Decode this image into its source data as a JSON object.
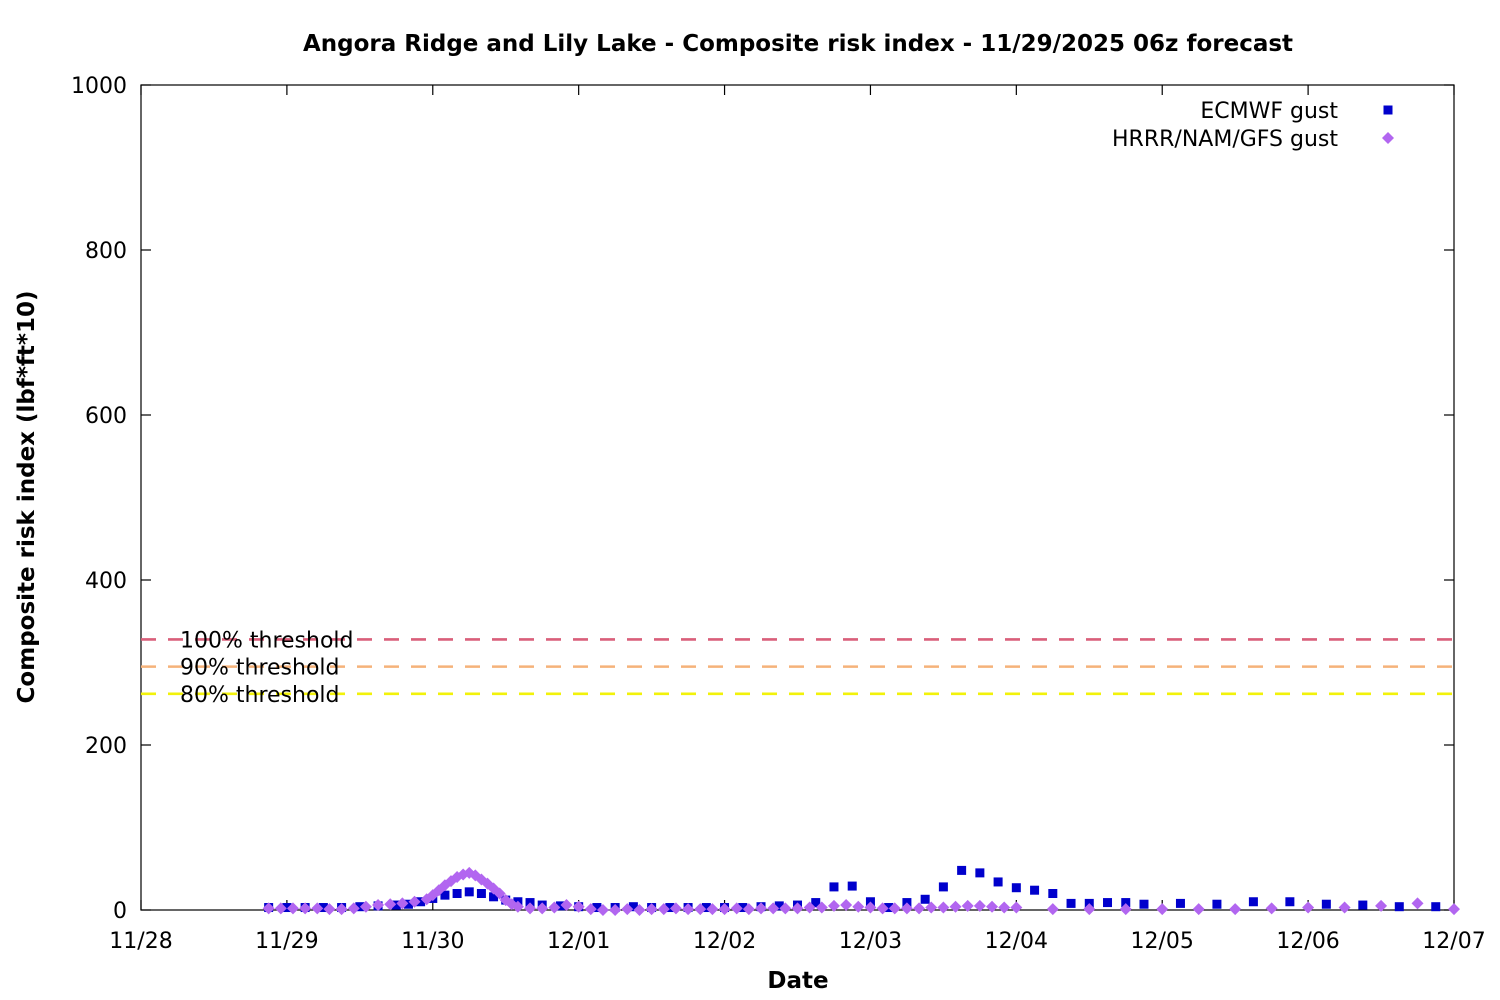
{
  "chart_data": {
    "type": "scatter",
    "title": "Angora Ridge and Lily Lake - Composite risk index - 11/29/2025 06z forecast",
    "xlabel": "Date",
    "ylabel": "Composite risk index (lbf*ft*10)",
    "xlim": [
      "2025-11-28T00:00",
      "2025-12-07T00:00"
    ],
    "ylim": [
      0,
      1000
    ],
    "x_ticks": [
      "11/28",
      "11/29",
      "11/30",
      "12/01",
      "12/02",
      "12/03",
      "12/04",
      "12/05",
      "12/06",
      "12/07"
    ],
    "y_ticks": [
      "0",
      "200",
      "400",
      "600",
      "800",
      "1000"
    ],
    "legend_position": "top-right",
    "grid": false,
    "thresholds": [
      {
        "label": "100% threshold",
        "value": 328,
        "color": "#d95f7a"
      },
      {
        "label": "90% threshold",
        "value": 295,
        "color": "#f5b27a"
      },
      {
        "label": "80% threshold",
        "value": 262,
        "color": "#f2f20a"
      }
    ],
    "series": [
      {
        "name": "ECMWF gust",
        "marker": "square",
        "color": "#0000cc",
        "points": [
          [
            "2025-11-28T21:00",
            3
          ],
          [
            "2025-11-29T00:00",
            3
          ],
          [
            "2025-11-29T03:00",
            3
          ],
          [
            "2025-11-29T06:00",
            3
          ],
          [
            "2025-11-29T09:00",
            3
          ],
          [
            "2025-11-29T12:00",
            4
          ],
          [
            "2025-11-29T15:00",
            5
          ],
          [
            "2025-11-29T18:00",
            6
          ],
          [
            "2025-11-29T20:00",
            7
          ],
          [
            "2025-11-29T22:00",
            10
          ],
          [
            "2025-11-30T00:00",
            14
          ],
          [
            "2025-11-30T02:00",
            18
          ],
          [
            "2025-11-30T04:00",
            20
          ],
          [
            "2025-11-30T06:00",
            22
          ],
          [
            "2025-11-30T08:00",
            20
          ],
          [
            "2025-11-30T10:00",
            16
          ],
          [
            "2025-11-30T12:00",
            12
          ],
          [
            "2025-11-30T14:00",
            10
          ],
          [
            "2025-11-30T16:00",
            9
          ],
          [
            "2025-11-30T18:00",
            6
          ],
          [
            "2025-11-30T21:00",
            5
          ],
          [
            "2025-12-01T00:00",
            4
          ],
          [
            "2025-12-01T03:00",
            3
          ],
          [
            "2025-12-01T06:00",
            3
          ],
          [
            "2025-12-01T09:00",
            4
          ],
          [
            "2025-12-01T12:00",
            3
          ],
          [
            "2025-12-01T15:00",
            3
          ],
          [
            "2025-12-01T18:00",
            3
          ],
          [
            "2025-12-01T21:00",
            3
          ],
          [
            "2025-12-02T00:00",
            3
          ],
          [
            "2025-12-02T03:00",
            3
          ],
          [
            "2025-12-02T06:00",
            4
          ],
          [
            "2025-12-02T09:00",
            5
          ],
          [
            "2025-12-02T12:00",
            6
          ],
          [
            "2025-12-02T15:00",
            9
          ],
          [
            "2025-12-02T18:00",
            28
          ],
          [
            "2025-12-02T21:00",
            29
          ],
          [
            "2025-12-03T00:00",
            10
          ],
          [
            "2025-12-03T03:00",
            3
          ],
          [
            "2025-12-03T06:00",
            9
          ],
          [
            "2025-12-03T09:00",
            13
          ],
          [
            "2025-12-03T12:00",
            28
          ],
          [
            "2025-12-03T15:00",
            48
          ],
          [
            "2025-12-03T18:00",
            45
          ],
          [
            "2025-12-03T21:00",
            34
          ],
          [
            "2025-12-04T00:00",
            27
          ],
          [
            "2025-12-04T03:00",
            24
          ],
          [
            "2025-12-04T06:00",
            20
          ],
          [
            "2025-12-04T09:00",
            8
          ],
          [
            "2025-12-04T12:00",
            8
          ],
          [
            "2025-12-04T15:00",
            9
          ],
          [
            "2025-12-04T18:00",
            9
          ],
          [
            "2025-12-04T21:00",
            7
          ],
          [
            "2025-12-05T03:00",
            8
          ],
          [
            "2025-12-05T09:00",
            7
          ],
          [
            "2025-12-05T15:00",
            10
          ],
          [
            "2025-12-05T21:00",
            10
          ],
          [
            "2025-12-06T03:00",
            7
          ],
          [
            "2025-12-06T09:00",
            6
          ],
          [
            "2025-12-06T15:00",
            4
          ],
          [
            "2025-12-06T21:00",
            4
          ]
        ]
      },
      {
        "name": "HRRR/NAM/GFS gust",
        "marker": "diamond",
        "color": "#b266f0",
        "points": [
          [
            "2025-11-28T21:00",
            2
          ],
          [
            "2025-11-28T23:00",
            2
          ],
          [
            "2025-11-29T01:00",
            2
          ],
          [
            "2025-11-29T03:00",
            2
          ],
          [
            "2025-11-29T05:00",
            2
          ],
          [
            "2025-11-29T07:00",
            1
          ],
          [
            "2025-11-29T09:00",
            1
          ],
          [
            "2025-11-29T11:00",
            2
          ],
          [
            "2025-11-29T13:00",
            4
          ],
          [
            "2025-11-29T15:00",
            6
          ],
          [
            "2025-11-29T17:00",
            7
          ],
          [
            "2025-11-29T19:00",
            8
          ],
          [
            "2025-11-29T21:00",
            10
          ],
          [
            "2025-11-29T23:00",
            13
          ],
          [
            "2025-11-30T00:00",
            18
          ],
          [
            "2025-11-30T01:00",
            24
          ],
          [
            "2025-11-30T02:00",
            30
          ],
          [
            "2025-11-30T03:00",
            35
          ],
          [
            "2025-11-30T04:00",
            40
          ],
          [
            "2025-11-30T05:00",
            43
          ],
          [
            "2025-11-30T06:00",
            45
          ],
          [
            "2025-11-30T07:00",
            42
          ],
          [
            "2025-11-30T08:00",
            37
          ],
          [
            "2025-11-30T09:00",
            32
          ],
          [
            "2025-11-30T10:00",
            26
          ],
          [
            "2025-11-30T11:00",
            20
          ],
          [
            "2025-11-30T12:00",
            12
          ],
          [
            "2025-11-30T13:00",
            7
          ],
          [
            "2025-11-30T14:00",
            4
          ],
          [
            "2025-11-30T16:00",
            2
          ],
          [
            "2025-11-30T18:00",
            2
          ],
          [
            "2025-11-30T20:00",
            3
          ],
          [
            "2025-11-30T22:00",
            6
          ],
          [
            "2025-12-01T00:00",
            4
          ],
          [
            "2025-12-01T02:00",
            1
          ],
          [
            "2025-12-01T04:00",
            0
          ],
          [
            "2025-12-01T06:00",
            0
          ],
          [
            "2025-12-01T08:00",
            1
          ],
          [
            "2025-12-01T10:00",
            0
          ],
          [
            "2025-12-01T12:00",
            1
          ],
          [
            "2025-12-01T14:00",
            1
          ],
          [
            "2025-12-01T16:00",
            2
          ],
          [
            "2025-12-01T18:00",
            1
          ],
          [
            "2025-12-01T20:00",
            1
          ],
          [
            "2025-12-01T22:00",
            1
          ],
          [
            "2025-12-02T00:00",
            1
          ],
          [
            "2025-12-02T02:00",
            2
          ],
          [
            "2025-12-02T04:00",
            1
          ],
          [
            "2025-12-02T06:00",
            2
          ],
          [
            "2025-12-02T08:00",
            2
          ],
          [
            "2025-12-02T10:00",
            2
          ],
          [
            "2025-12-02T12:00",
            2
          ],
          [
            "2025-12-02T14:00",
            3
          ],
          [
            "2025-12-02T16:00",
            3
          ],
          [
            "2025-12-02T18:00",
            5
          ],
          [
            "2025-12-02T20:00",
            6
          ],
          [
            "2025-12-02T22:00",
            4
          ],
          [
            "2025-12-03T00:00",
            3
          ],
          [
            "2025-12-03T02:00",
            2
          ],
          [
            "2025-12-03T04:00",
            2
          ],
          [
            "2025-12-03T06:00",
            2
          ],
          [
            "2025-12-03T08:00",
            2
          ],
          [
            "2025-12-03T10:00",
            3
          ],
          [
            "2025-12-03T12:00",
            3
          ],
          [
            "2025-12-03T14:00",
            4
          ],
          [
            "2025-12-03T16:00",
            5
          ],
          [
            "2025-12-03T18:00",
            5
          ],
          [
            "2025-12-03T20:00",
            4
          ],
          [
            "2025-12-03T22:00",
            3
          ],
          [
            "2025-12-04T00:00",
            3
          ],
          [
            "2025-12-04T06:00",
            1
          ],
          [
            "2025-12-04T12:00",
            1
          ],
          [
            "2025-12-04T18:00",
            1
          ],
          [
            "2025-12-05T00:00",
            1
          ],
          [
            "2025-12-05T06:00",
            1
          ],
          [
            "2025-12-05T12:00",
            1
          ],
          [
            "2025-12-05T18:00",
            2
          ],
          [
            "2025-12-06T00:00",
            3
          ],
          [
            "2025-12-06T06:00",
            3
          ],
          [
            "2025-12-06T12:00",
            5
          ],
          [
            "2025-12-06T18:00",
            8
          ],
          [
            "2025-12-07T00:00",
            1
          ]
        ]
      }
    ]
  }
}
